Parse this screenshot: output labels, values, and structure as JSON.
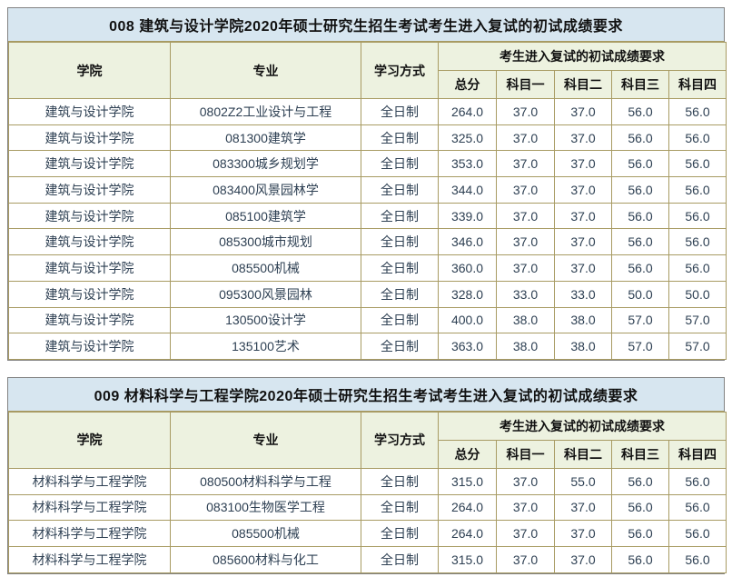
{
  "colors": {
    "title_bg": "#d7e6f0",
    "header_bg": "#edf2e0",
    "grid_border": "#a89b63",
    "outer_border": "#828282",
    "data_text": "#2e4053",
    "heading_text": "#111111"
  },
  "columns": {
    "college": "学院",
    "major": "专业",
    "study_mode": "学习方式",
    "score_group": "考生进入复试的初试成绩要求",
    "total": "总分",
    "subject1": "科目一",
    "subject2": "科目二",
    "subject3": "科目三",
    "subject4": "科目四"
  },
  "tables": [
    {
      "title": "008 建筑与设计学院2020年硕士研究生招生考试考生进入复试的初试成绩要求",
      "rows": [
        {
          "college": "建筑与设计学院",
          "major": "0802Z2工业设计与工程",
          "study_mode": "全日制",
          "total": "264.0",
          "subject1": "37.0",
          "subject2": "37.0",
          "subject3": "56.0",
          "subject4": "56.0"
        },
        {
          "college": "建筑与设计学院",
          "major": "081300建筑学",
          "study_mode": "全日制",
          "total": "325.0",
          "subject1": "37.0",
          "subject2": "37.0",
          "subject3": "56.0",
          "subject4": "56.0"
        },
        {
          "college": "建筑与设计学院",
          "major": "083300城乡规划学",
          "study_mode": "全日制",
          "total": "353.0",
          "subject1": "37.0",
          "subject2": "37.0",
          "subject3": "56.0",
          "subject4": "56.0"
        },
        {
          "college": "建筑与设计学院",
          "major": "083400风景园林学",
          "study_mode": "全日制",
          "total": "344.0",
          "subject1": "37.0",
          "subject2": "37.0",
          "subject3": "56.0",
          "subject4": "56.0"
        },
        {
          "college": "建筑与设计学院",
          "major": "085100建筑学",
          "study_mode": "全日制",
          "total": "339.0",
          "subject1": "37.0",
          "subject2": "37.0",
          "subject3": "56.0",
          "subject4": "56.0"
        },
        {
          "college": "建筑与设计学院",
          "major": "085300城市规划",
          "study_mode": "全日制",
          "total": "346.0",
          "subject1": "37.0",
          "subject2": "37.0",
          "subject3": "56.0",
          "subject4": "56.0"
        },
        {
          "college": "建筑与设计学院",
          "major": "085500机械",
          "study_mode": "全日制",
          "total": "360.0",
          "subject1": "37.0",
          "subject2": "37.0",
          "subject3": "56.0",
          "subject4": "56.0"
        },
        {
          "college": "建筑与设计学院",
          "major": "095300风景园林",
          "study_mode": "全日制",
          "total": "328.0",
          "subject1": "33.0",
          "subject2": "33.0",
          "subject3": "50.0",
          "subject4": "50.0"
        },
        {
          "college": "建筑与设计学院",
          "major": "130500设计学",
          "study_mode": "全日制",
          "total": "400.0",
          "subject1": "38.0",
          "subject2": "38.0",
          "subject3": "57.0",
          "subject4": "57.0"
        },
        {
          "college": "建筑与设计学院",
          "major": "135100艺术",
          "study_mode": "全日制",
          "total": "363.0",
          "subject1": "38.0",
          "subject2": "38.0",
          "subject3": "57.0",
          "subject4": "57.0"
        }
      ]
    },
    {
      "title": "009 材料科学与工程学院2020年硕士研究生招生考试考生进入复试的初试成绩要求",
      "rows": [
        {
          "college": "材料科学与工程学院",
          "major": "080500材料科学与工程",
          "study_mode": "全日制",
          "total": "315.0",
          "subject1": "37.0",
          "subject2": "55.0",
          "subject3": "56.0",
          "subject4": "56.0"
        },
        {
          "college": "材料科学与工程学院",
          "major": "083100生物医学工程",
          "study_mode": "全日制",
          "total": "264.0",
          "subject1": "37.0",
          "subject2": "37.0",
          "subject3": "56.0",
          "subject4": "56.0"
        },
        {
          "college": "材料科学与工程学院",
          "major": "085500机械",
          "study_mode": "全日制",
          "total": "264.0",
          "subject1": "37.0",
          "subject2": "37.0",
          "subject3": "56.0",
          "subject4": "56.0"
        },
        {
          "college": "材料科学与工程学院",
          "major": "085600材料与化工",
          "study_mode": "全日制",
          "total": "315.0",
          "subject1": "37.0",
          "subject2": "37.0",
          "subject3": "56.0",
          "subject4": "56.0"
        }
      ]
    }
  ]
}
